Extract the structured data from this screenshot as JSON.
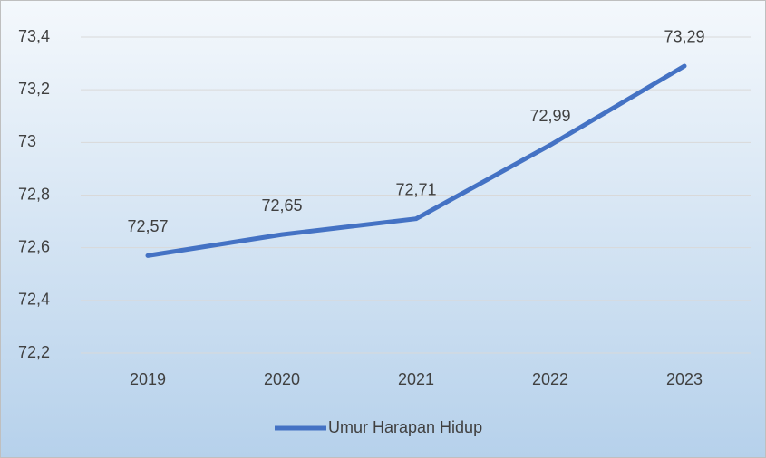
{
  "chart_data": {
    "type": "line",
    "categories": [
      "2019",
      "2020",
      "2021",
      "2022",
      "2023"
    ],
    "series": [
      {
        "name": "Umur Harapan Hidup",
        "color": "#4472c4",
        "values": [
          72.57,
          72.65,
          72.71,
          72.99,
          73.29
        ],
        "value_labels": [
          "72,57",
          "72,65",
          "72,71",
          "72,99",
          "73,29"
        ]
      }
    ],
    "ylim": [
      72.2,
      73.4
    ],
    "yticks": [
      {
        "value": 72.2,
        "label": "72,2"
      },
      {
        "value": 72.4,
        "label": "72,4"
      },
      {
        "value": 72.6,
        "label": "72,6"
      },
      {
        "value": 72.8,
        "label": "72,8"
      },
      73,
      {
        "value": 73.2,
        "label": "73,2"
      },
      {
        "value": 73.4,
        "label": "73,4"
      }
    ],
    "grid": true,
    "legend": "bottom"
  }
}
